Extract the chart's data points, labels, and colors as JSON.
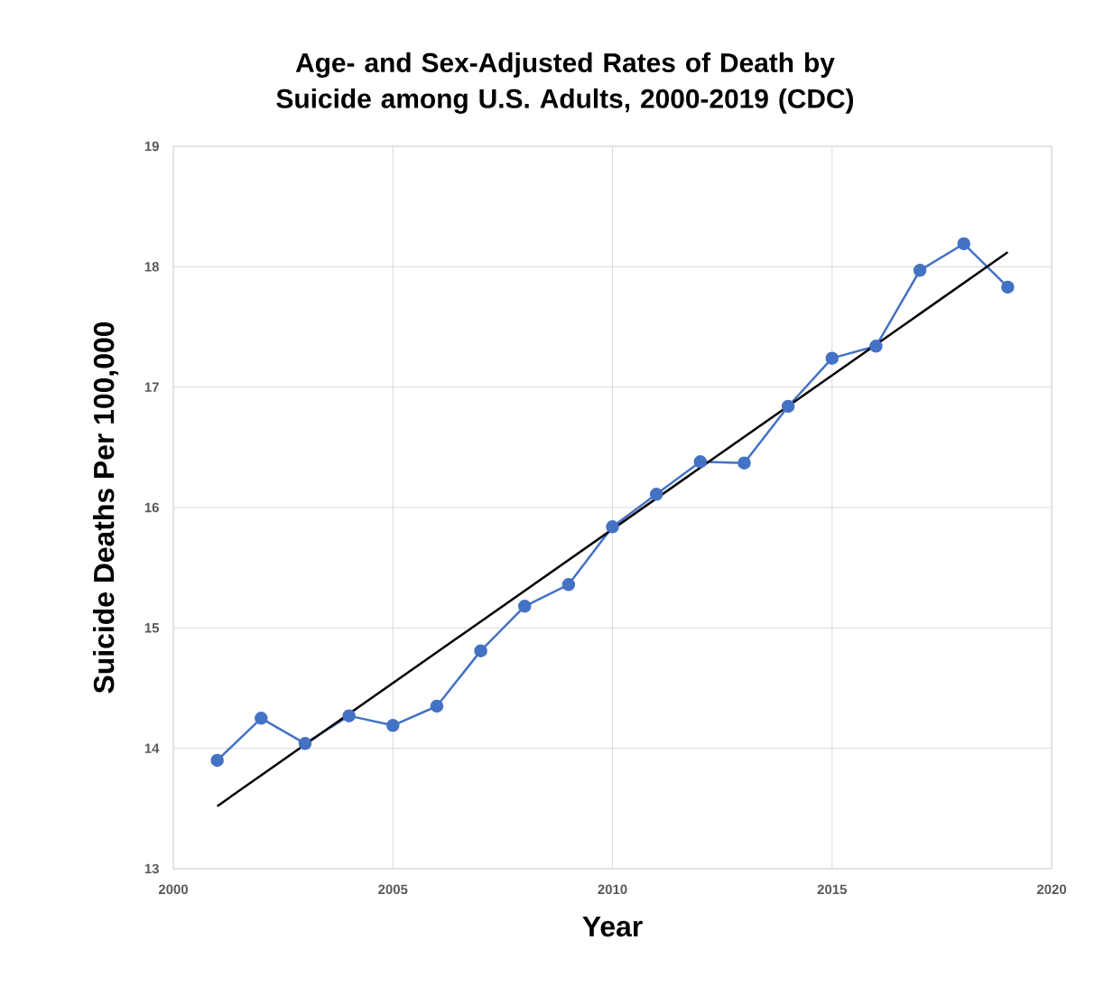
{
  "chart_data": {
    "type": "line",
    "title": "Age- and Sex-Adjusted Rates of Death by Suicide among U.S. Adults, 2000-2019 (CDC)",
    "xlabel": "Year",
    "ylabel": "Suicide Deaths Per 100,000",
    "xlim": [
      2000,
      2020
    ],
    "xticks": [
      2000,
      2005,
      2010,
      2015,
      2020
    ],
    "ylim": [
      13,
      19
    ],
    "yticks": [
      13,
      14,
      15,
      16,
      17,
      18,
      19
    ],
    "grid": true,
    "marker": "circle",
    "line_style": "solid",
    "series": [
      {
        "color": "#4472c4",
        "x": [
          2001,
          2002,
          2003,
          2004,
          2005,
          2006,
          2007,
          2008,
          2009,
          2010,
          2011,
          2012,
          2013,
          2014,
          2015,
          2016,
          2017,
          2018,
          2019
        ],
        "values": [
          13.9,
          14.25,
          14.04,
          14.27,
          14.19,
          14.35,
          14.81,
          15.18,
          15.36,
          15.84,
          16.11,
          16.38,
          16.37,
          16.84,
          17.24,
          17.34,
          17.97,
          18.19,
          17.83
        ]
      },
      {
        "color": "#000000",
        "type": "line",
        "marker": "none",
        "x": [
          2001,
          2019
        ],
        "values": [
          13.52,
          18.12
        ]
      }
    ]
  }
}
